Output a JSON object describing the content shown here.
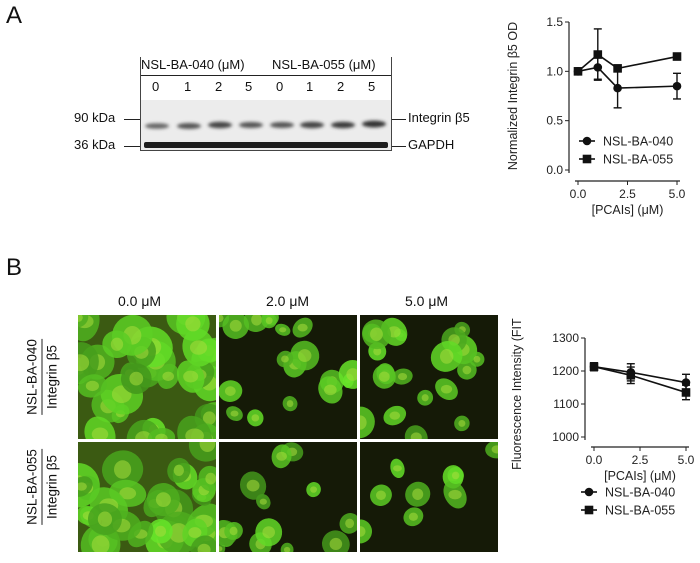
{
  "panel_a": {
    "letter": "A",
    "blot": {
      "group1": "NSL-BA-040 (μM)",
      "group2": "NSL-BA-055 (μM)",
      "lanes": [
        "0",
        "1",
        "2",
        "5",
        "0",
        "1",
        "2",
        "5"
      ],
      "mw_top": "90 kDa",
      "mw_bottom": "36 kDa",
      "protein_top": "Integrin β5",
      "protein_bottom": "GAPDH"
    }
  },
  "panel_b": {
    "letter": "B",
    "concentrations": [
      "0.0 μM",
      "2.0 μM",
      "5.0 μM"
    ],
    "row1": {
      "line1": "NSL-BA-040",
      "line2": "Integrin  β5"
    },
    "row2": {
      "line1": "NSL-BA-055",
      "line2": "Integrin  β5"
    }
  },
  "chart_data": [
    {
      "type": "line",
      "ylabel": "Normalized Integrin β5 OD",
      "xlabel": "[PCAIs] (μM)",
      "xlim": [
        0,
        5
      ],
      "ylim": [
        0,
        1.5
      ],
      "xticks": [
        "0.0",
        "2.5",
        "5.0"
      ],
      "yticks": [
        "0.0",
        "0.5",
        "1.0",
        "1.5"
      ],
      "legend_position": "bottom-right",
      "x": [
        0,
        1,
        2,
        5
      ],
      "series": [
        {
          "name": "NSL-BA-040",
          "marker": "circle",
          "values": [
            1.0,
            1.04,
            0.83,
            0.85
          ],
          "errors": [
            0.0,
            0.12,
            0.2,
            0.13
          ]
        },
        {
          "name": "NSL-BA-055",
          "marker": "square",
          "values": [
            1.0,
            1.17,
            1.03,
            1.15
          ],
          "errors": [
            0.0,
            0.26,
            0.0,
            0.0
          ]
        }
      ]
    },
    {
      "type": "line",
      "ylabel": "Fluorescence Intensity (FITC)",
      "xlabel": "[PCAIs] (μM)",
      "xlim": [
        0,
        5
      ],
      "ylim": [
        1000,
        1300
      ],
      "xticks": [
        "0.0",
        "2.5",
        "5.0"
      ],
      "yticks": [
        "1000",
        "1100",
        "1200",
        "1300"
      ],
      "legend_position": "bottom-right",
      "x": [
        0,
        2,
        5
      ],
      "series": [
        {
          "name": "NSL-BA-040",
          "marker": "circle",
          "values": [
            1213,
            1196,
            1165
          ],
          "errors": [
            12,
            26,
            25
          ]
        },
        {
          "name": "NSL-BA-055",
          "marker": "square",
          "values": [
            1213,
            1187,
            1135
          ],
          "errors": [
            12,
            25,
            22
          ]
        }
      ]
    }
  ]
}
